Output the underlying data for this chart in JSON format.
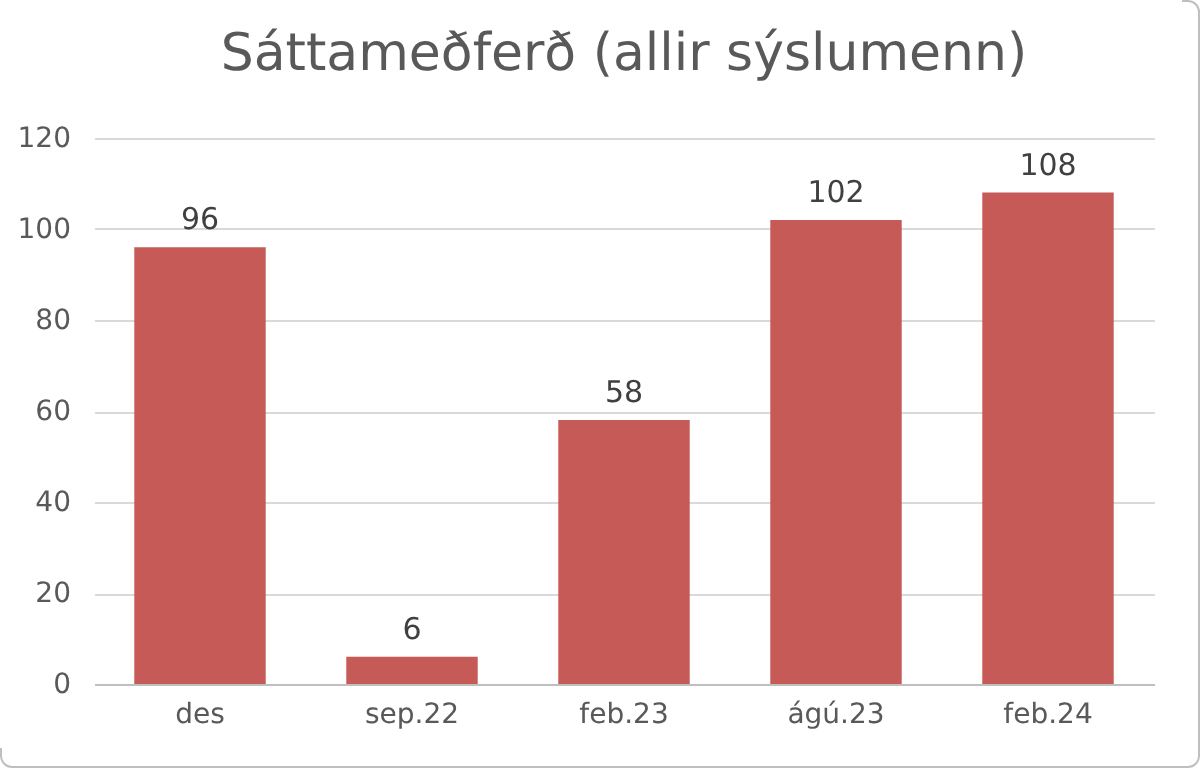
{
  "chart_data": {
    "type": "bar",
    "title": "Sáttameðferð  (allir sýslumenn)",
    "categories": [
      "des",
      "sep.22",
      "feb.23",
      "ágú.23",
      "feb.24"
    ],
    "values": [
      96,
      6,
      58,
      102,
      108
    ],
    "color": "#c55a57",
    "ylim": [
      0,
      120
    ],
    "yticks": [
      0,
      20,
      40,
      60,
      80,
      100,
      120
    ],
    "grid": "y",
    "data_labels": true
  }
}
